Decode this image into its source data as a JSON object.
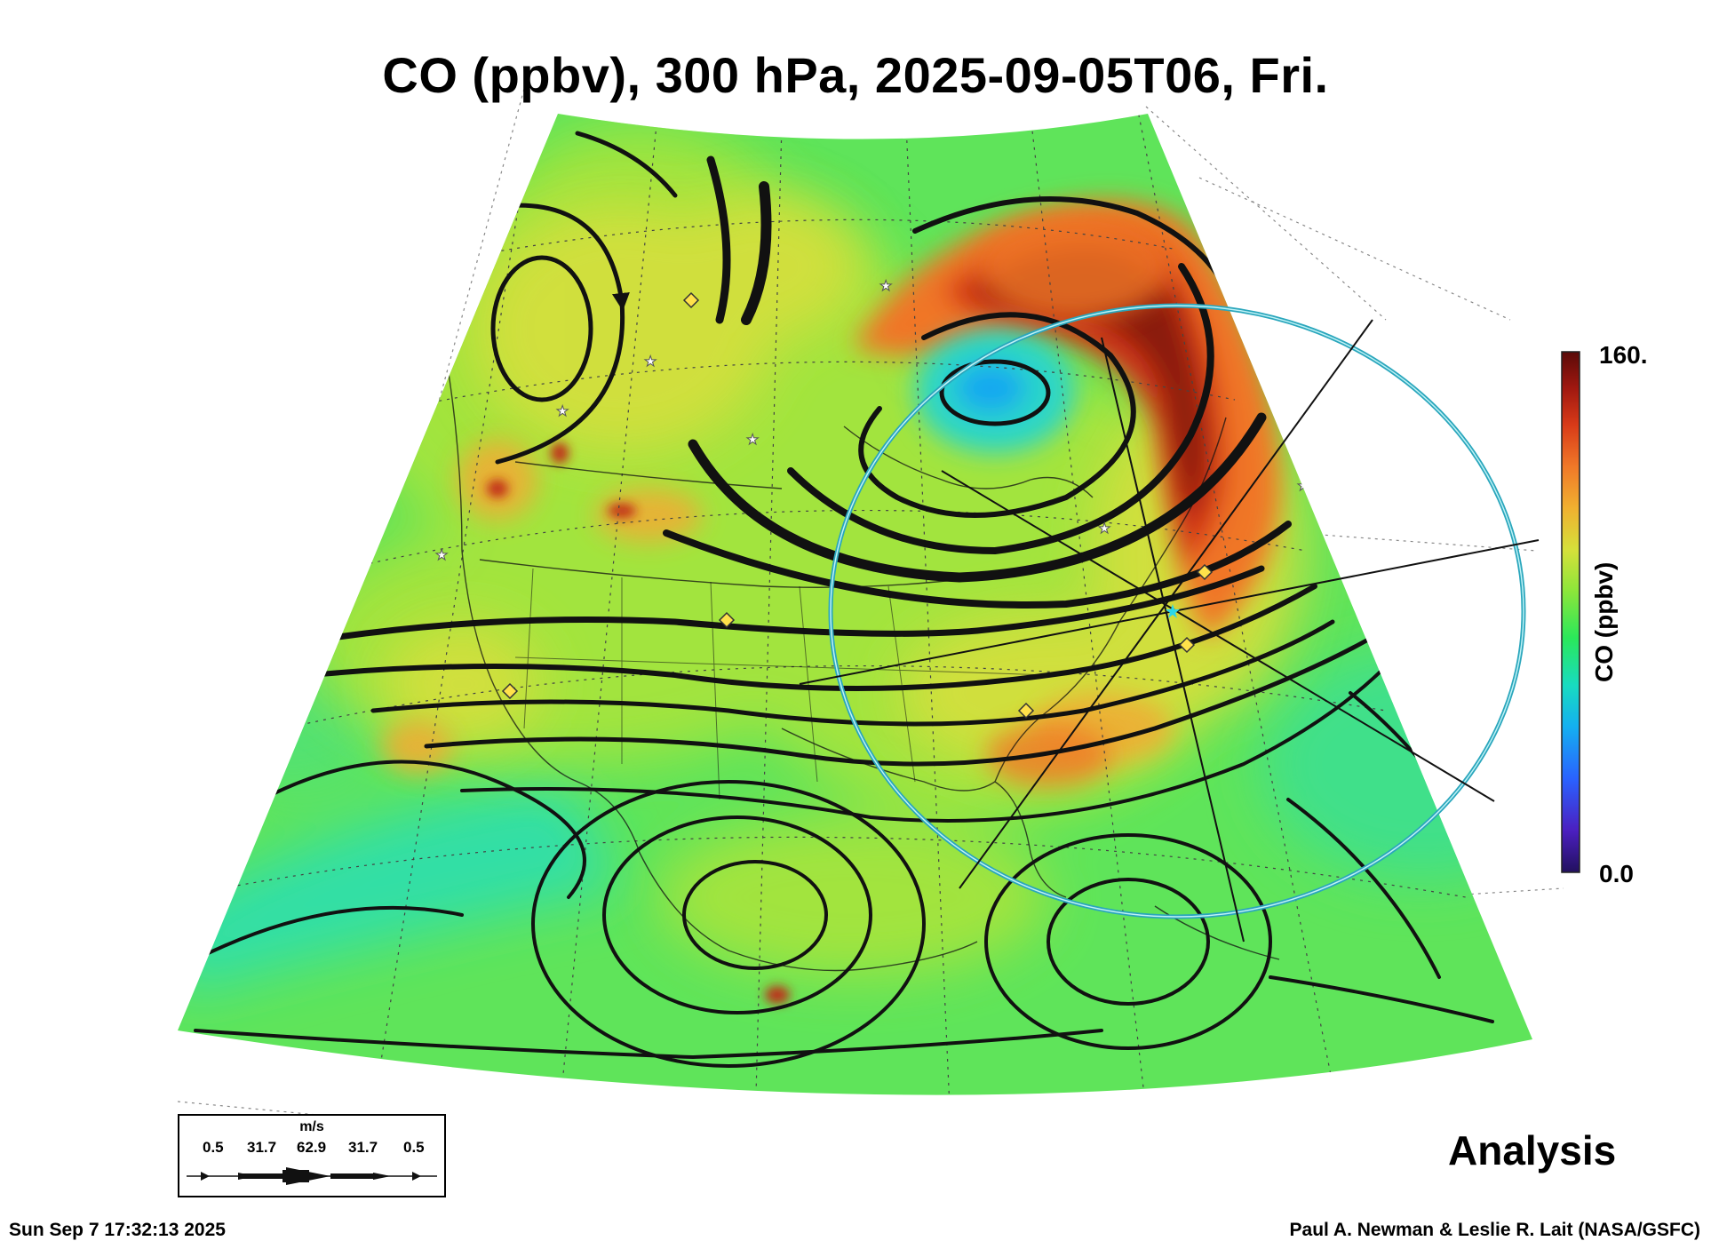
{
  "title": "CO (ppbv), 300 hPa, 2025-09-05T06, Fri.",
  "colorbar": {
    "title": "CO (ppbv)",
    "max_label": "160.",
    "min_label": "0.0",
    "range": [
      0,
      160
    ],
    "colors": [
      "#22105e",
      "#4b1fc0",
      "#2a62ff",
      "#14b0f0",
      "#18dcc0",
      "#2ae85a",
      "#8ce63a",
      "#d6e03a",
      "#f0b030",
      "#f07828",
      "#d83a18",
      "#a01810",
      "#5a0a08"
    ]
  },
  "wind_legend": {
    "units": "m/s",
    "values": [
      "0.5",
      "31.7",
      "62.9",
      "31.7",
      "0.5"
    ]
  },
  "label_analysis": "Analysis",
  "timestamp": "Sun Sep  7 17:32:13 2025",
  "credit": "Paul A. Newman & Leslie R. Lait (NASA/GSFC)",
  "colors": {
    "background_field": "#5fe45a",
    "high_co": "#8a1a0c",
    "ring": "#35c6d8",
    "streamline": "#111111"
  }
}
